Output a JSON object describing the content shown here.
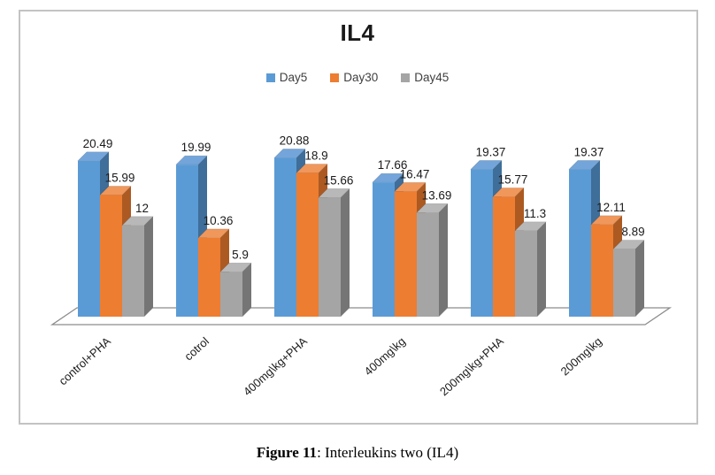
{
  "title": "IL4",
  "caption": {
    "bold": "Figure 11",
    "rest": ": Interleukins two (IL4)"
  },
  "chart_data": {
    "type": "bar",
    "style": "3d-column",
    "title": "IL4",
    "categories": [
      "control+PHA",
      "cotrol",
      "400mg\\kg+PHA",
      "400mg\\kg",
      "200mg\\kg+PHA",
      "200mg\\kg"
    ],
    "series": [
      {
        "name": "Day5",
        "color": "#5B9BD5",
        "side_color": "#3E6E99",
        "top_color": "#74A5DA",
        "values": [
          20.49,
          19.99,
          20.88,
          17.66,
          19.37,
          19.37
        ]
      },
      {
        "name": "Day30",
        "color": "#ED7D31",
        "side_color": "#AC5A22",
        "top_color": "#F0975C",
        "values": [
          15.99,
          10.36,
          18.9,
          16.47,
          15.77,
          12.11
        ]
      },
      {
        "name": "Day45",
        "color": "#A5A5A5",
        "side_color": "#757575",
        "top_color": "#B8B8B8",
        "values": [
          12,
          5.9,
          15.66,
          13.69,
          11.3,
          8.89
        ]
      }
    ],
    "value_labels": true,
    "legend_position": "top",
    "xlabel": "",
    "ylabel": "",
    "ylim": [
      0,
      22
    ],
    "grid": false,
    "axis_color": "#8C8C8C",
    "label_color": "#1a1a1a"
  }
}
